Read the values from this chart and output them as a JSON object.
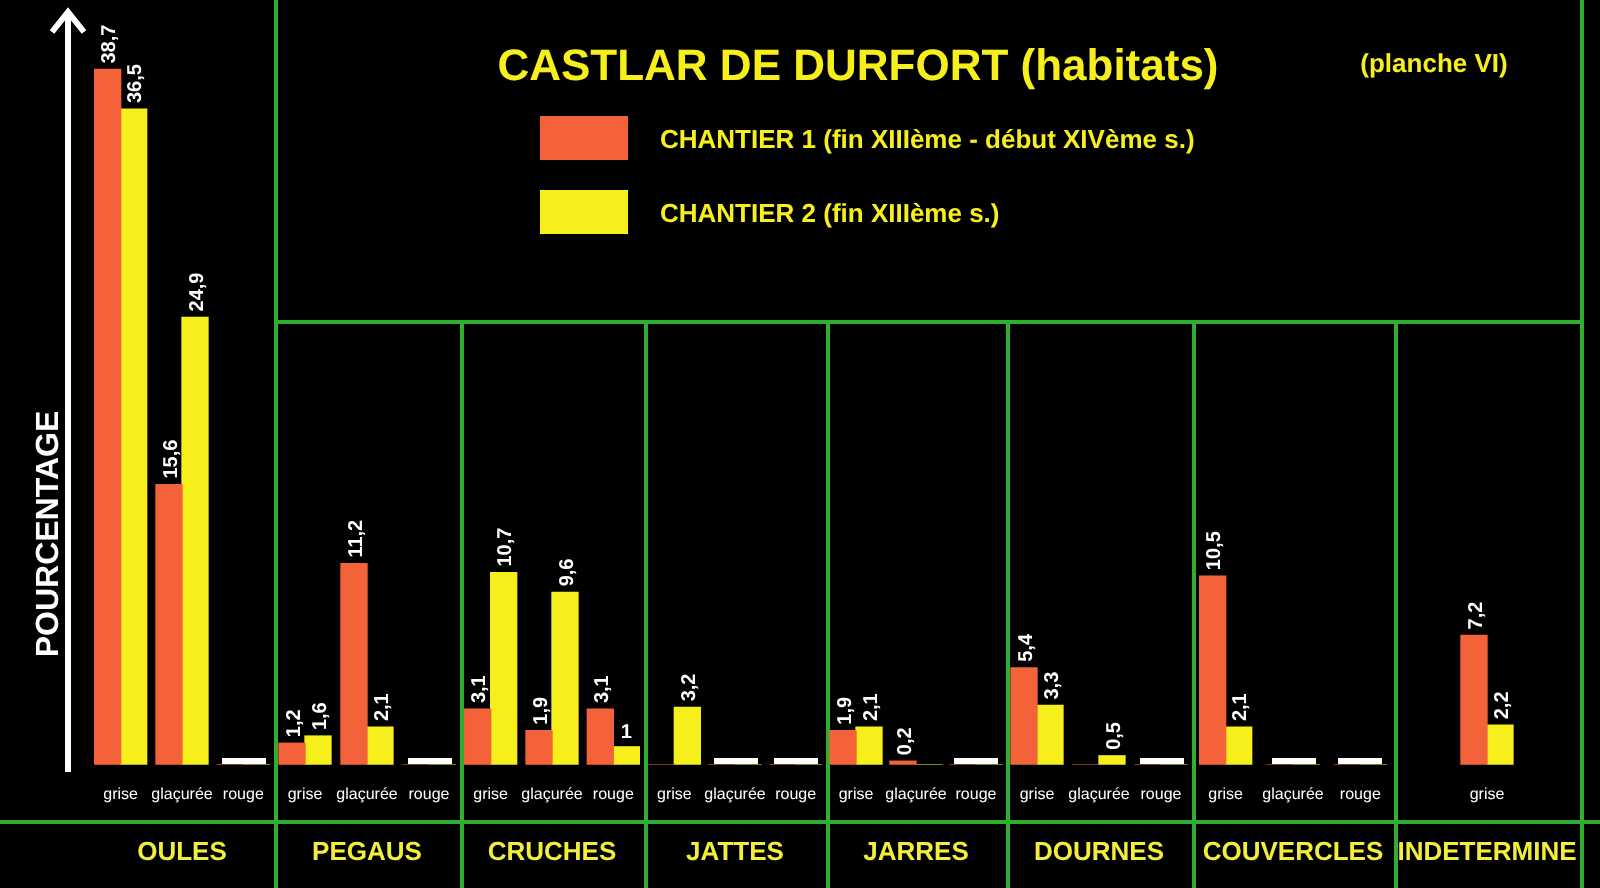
{
  "chart_data": [
    {
      "type": "other",
      "title": "CASTLAR DE DURFORT (habitats)",
      "subtitle": "(planche VI)"
    },
    {
      "type": "bar",
      "ylabel": "POURCENTAGE",
      "xlabel": "OULES",
      "legend": "top",
      "categories": [
        "grise",
        "glaçurée",
        "rouge"
      ],
      "series": [
        {
          "name": "CHANTIER 1 (fin XIIIème - début XIVème s.)",
          "color": "#f4623a",
          "values": [
            38.7,
            15.6,
            0
          ],
          "value_labels": [
            "38,7",
            "15,6",
            null
          ]
        },
        {
          "name": "CHANTIER 2 (fin XIIIème s.)",
          "color": "#f6ef1c",
          "values": [
            36.5,
            24.9,
            0
          ],
          "value_labels": [
            "36,5",
            "24,9",
            null
          ]
        }
      ]
    },
    {
      "type": "bar",
      "xlabel": "PEGAUS",
      "categories": [
        "grise",
        "glaçurée",
        "rouge"
      ],
      "series": [
        {
          "color": "#f4623a",
          "values": [
            1.2,
            11.2,
            0
          ],
          "value_labels": [
            "1,2",
            "11,2",
            null
          ]
        },
        {
          "color": "#f6ef1c",
          "values": [
            1.6,
            2.1,
            0
          ],
          "value_labels": [
            "1,6",
            "2,1",
            null
          ]
        }
      ]
    },
    {
      "type": "bar",
      "xlabel": "CRUCHES",
      "categories": [
        "grise",
        "glaçurée",
        "rouge"
      ],
      "series": [
        {
          "color": "#f4623a",
          "values": [
            3.1,
            1.9,
            3.1
          ],
          "value_labels": [
            "3,1",
            "1,9",
            "3,1"
          ]
        },
        {
          "color": "#f6ef1c",
          "values": [
            10.7,
            9.6,
            1
          ],
          "value_labels": [
            "10,7",
            "9,6",
            "1"
          ]
        }
      ]
    },
    {
      "type": "bar",
      "xlabel": "JATTES",
      "categories": [
        "grise",
        "glaçurée",
        "rouge"
      ],
      "series": [
        {
          "color": "#f4623a",
          "values": [
            0,
            0,
            0
          ],
          "value_labels": [
            null,
            null,
            null
          ]
        },
        {
          "color": "#f6ef1c",
          "values": [
            3.2,
            0,
            0
          ],
          "value_labels": [
            "3,2",
            null,
            null
          ]
        }
      ]
    },
    {
      "type": "bar",
      "xlabel": "JARRES",
      "categories": [
        "grise",
        "glaçurée",
        "rouge"
      ],
      "series": [
        {
          "color": "#f4623a",
          "values": [
            1.9,
            0.2,
            0
          ],
          "value_labels": [
            "1,9",
            "0,2",
            null
          ]
        },
        {
          "color": "#f6ef1c",
          "values": [
            2.1,
            0,
            0
          ],
          "value_labels": [
            "2,1",
            null,
            null
          ]
        }
      ]
    },
    {
      "type": "bar",
      "xlabel": "DOURNES",
      "categories": [
        "grise",
        "glaçurée",
        "rouge"
      ],
      "series": [
        {
          "color": "#f4623a",
          "values": [
            5.4,
            0,
            0
          ],
          "value_labels": [
            "5,4",
            null,
            null
          ]
        },
        {
          "color": "#f6ef1c",
          "values": [
            3.3,
            0.5,
            0
          ],
          "value_labels": [
            "3,3",
            "0,5",
            null
          ]
        }
      ]
    },
    {
      "type": "bar",
      "xlabel": "COUVERCLES",
      "categories": [
        "grise",
        "glaçurée",
        "rouge"
      ],
      "series": [
        {
          "color": "#f4623a",
          "values": [
            10.5,
            0,
            0
          ],
          "value_labels": [
            "10,5",
            null,
            null
          ]
        },
        {
          "color": "#f6ef1c",
          "values": [
            2.1,
            0,
            0
          ],
          "value_labels": [
            "2,1",
            null,
            null
          ]
        }
      ]
    },
    {
      "type": "bar",
      "xlabel": "INDETERMINE",
      "categories": [
        "grise"
      ],
      "series": [
        {
          "color": "#f4623a",
          "values": [
            7.2
          ],
          "value_labels": [
            "7,2"
          ]
        },
        {
          "color": "#f6ef1c",
          "values": [
            2.2
          ],
          "value_labels": [
            "2,2"
          ]
        }
      ]
    }
  ]
}
